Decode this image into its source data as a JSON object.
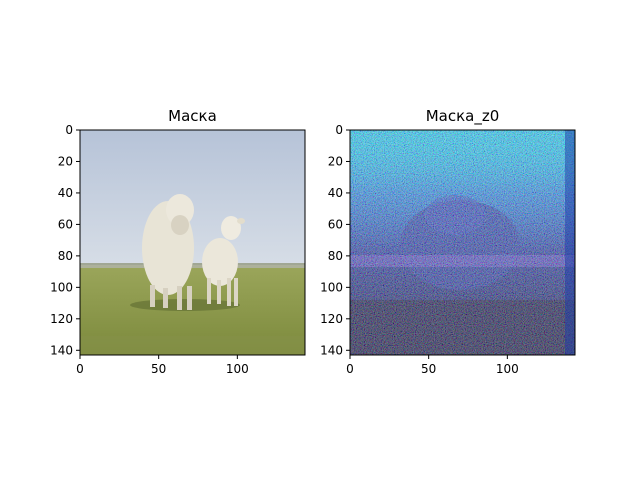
{
  "chart_data": [
    {
      "type": "heatmap",
      "title": "Маска",
      "content": "RGB photograph: two white sheep (adult and lamb) standing on green grass under a pale blue sky",
      "xlim": [
        0,
        143
      ],
      "ylim": [
        143,
        0
      ],
      "x_ticks": [
        0,
        50,
        100
      ],
      "y_ticks": [
        0,
        20,
        40,
        60,
        80,
        100,
        120,
        140
      ],
      "xlabel": "",
      "ylabel": "",
      "grid": false,
      "colors": {
        "sky": "#c5d0e0",
        "grass": "#8c9a4a",
        "wool": "#e6e2d4"
      }
    },
    {
      "type": "heatmap",
      "title": "Маска_z0",
      "content": "Noisy RGB reconstruction: bright cyan upper region with dark noisy blue/green/red textures in the center and bottom",
      "xlim": [
        0,
        143
      ],
      "ylim": [
        143,
        0
      ],
      "x_ticks": [
        0,
        50,
        100
      ],
      "y_ticks": [
        0,
        20,
        40,
        60,
        80,
        100,
        120,
        140
      ],
      "xlabel": "",
      "ylabel": "",
      "grid": false,
      "colors": {
        "cyan": "#14f0ff",
        "dark_blue": "#1a2a8c",
        "black": "#000010"
      }
    }
  ]
}
